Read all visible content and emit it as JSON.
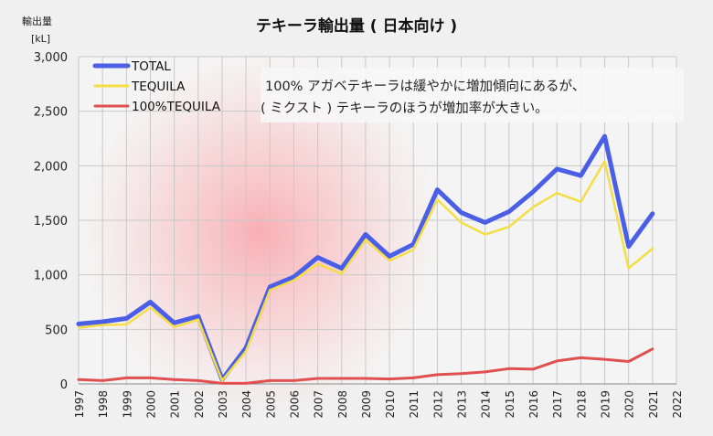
{
  "chart_data": {
    "type": "line",
    "title": "テキーラ輸出量 ( 日本向け )",
    "ylabel_line1": "輸出量",
    "ylabel_line2": "[kL]",
    "annotation_line1": "100% アガベテキーラは緩やかに増加傾向にあるが、",
    "annotation_line2": "( ミクスト ) テキーラのほうが増加率が大きい。",
    "ylim": [
      0,
      3000
    ],
    "yticks": [
      0,
      500,
      1000,
      1500,
      2000,
      2500,
      3000
    ],
    "ytick_labels": [
      "0",
      "500",
      "1,000",
      "1,500",
      "2,000",
      "2,500",
      "3,000"
    ],
    "x": [
      1997,
      1998,
      1999,
      2000,
      2001,
      2002,
      2003,
      2004,
      2005,
      2006,
      2007,
      2008,
      2009,
      2010,
      2011,
      2012,
      2013,
      2014,
      2015,
      2016,
      2017,
      2018,
      2019,
      2020,
      2021
    ],
    "xtick_labels": [
      "1997",
      "1998",
      "1999",
      "2000",
      "2001",
      "2002",
      "2003",
      "2004",
      "2005",
      "2006",
      "2007",
      "2008",
      "2009",
      "2010",
      "2011",
      "2012",
      "2013",
      "2014",
      "2015",
      "2016",
      "2017",
      "2018",
      "2019",
      "2020",
      "2021",
      "2022"
    ],
    "grid": true,
    "legend_position": "top-left",
    "series": [
      {
        "name": "TOTAL",
        "color": "#4a5fe6",
        "values": [
          550,
          570,
          600,
          750,
          560,
          620,
          40,
          330,
          890,
          980,
          1160,
          1060,
          1370,
          1170,
          1280,
          1780,
          1570,
          1480,
          1580,
          1760,
          1970,
          1910,
          2270,
          1260,
          1560
        ]
      },
      {
        "name": "TEQUILA",
        "color": "#f5dd45",
        "values": [
          515,
          540,
          545,
          700,
          520,
          590,
          30,
          300,
          860,
          950,
          1100,
          1010,
          1320,
          1130,
          1230,
          1690,
          1480,
          1370,
          1440,
          1620,
          1750,
          1670,
          2040,
          1060,
          1240
        ]
      },
      {
        "name": "100%TEQUILA",
        "color": "#e05050",
        "values": [
          40,
          30,
          55,
          55,
          40,
          30,
          5,
          5,
          30,
          30,
          50,
          50,
          50,
          45,
          55,
          85,
          95,
          110,
          140,
          135,
          210,
          240,
          225,
          205,
          320
        ]
      }
    ]
  }
}
